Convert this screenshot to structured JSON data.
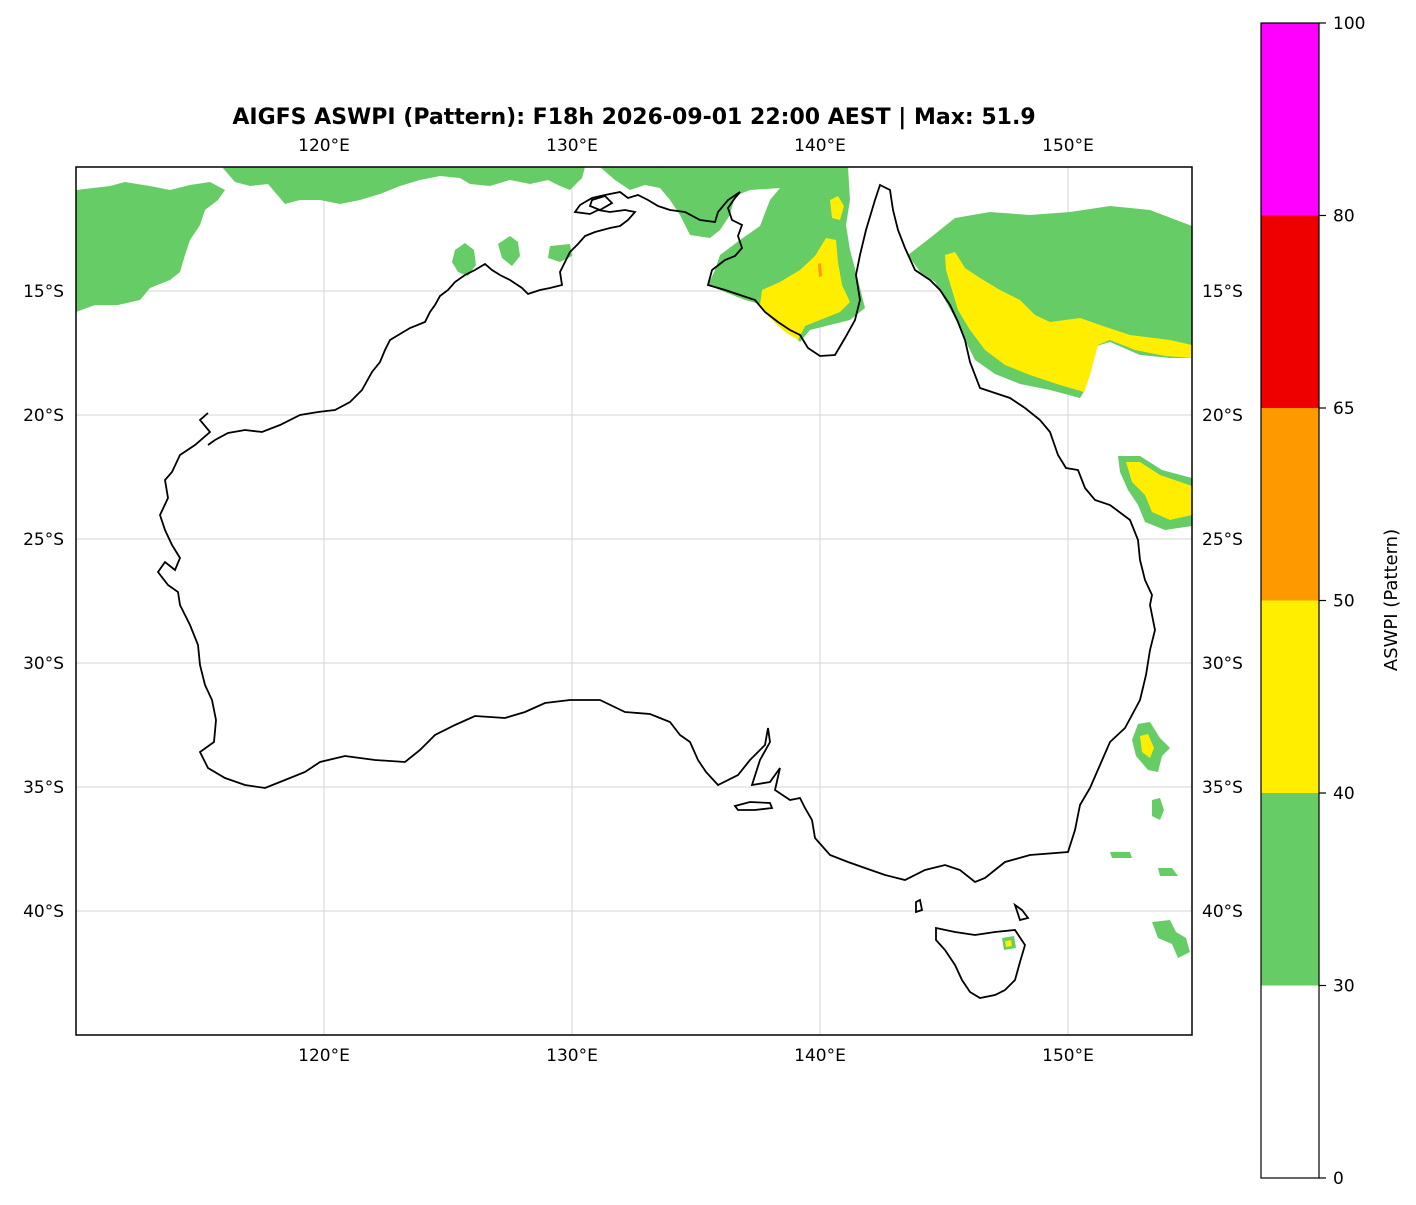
{
  "title": "AIGFS ASWPI (Pattern): F18h 2026-09-01 22:00 AEST | Max: 51.9",
  "map": {
    "lon_range": [
      110,
      155
    ],
    "lat_range": [
      -45,
      -10
    ],
    "lon_ticks": [
      {
        "value": 120,
        "label": "120°E"
      },
      {
        "value": 130,
        "label": "130°E"
      },
      {
        "value": 140,
        "label": "140°E"
      },
      {
        "value": 150,
        "label": "150°E"
      }
    ],
    "lat_ticks": [
      {
        "value": -15,
        "label": "15°S"
      },
      {
        "value": -20,
        "label": "20°S"
      },
      {
        "value": -25,
        "label": "25°S"
      },
      {
        "value": -30,
        "label": "30°S"
      },
      {
        "value": -35,
        "label": "35°S"
      },
      {
        "value": -40,
        "label": "40°S"
      }
    ],
    "gridlines": true,
    "coastline_color": "#000000"
  },
  "colorbar": {
    "label": "ASWPI (Pattern)",
    "ticks": [
      "0",
      "30",
      "40",
      "50",
      "65",
      "80",
      "100"
    ],
    "bins": [
      {
        "from": 0,
        "to": 30,
        "color": "#ffffff"
      },
      {
        "from": 30,
        "to": 40,
        "color": "#66cc66"
      },
      {
        "from": 40,
        "to": 50,
        "color": "#ffee00"
      },
      {
        "from": 50,
        "to": 65,
        "color": "#ff9900"
      },
      {
        "from": 65,
        "to": 80,
        "color": "#ee0000"
      },
      {
        "from": 80,
        "to": 100,
        "color": "#ff00ff"
      }
    ]
  },
  "regions": [
    {
      "name": "indian-ocean-northwest",
      "level": 30
    },
    {
      "name": "timor-sea",
      "level": 30
    },
    {
      "name": "gulf-of-carpentaria",
      "level": 30
    },
    {
      "name": "gulf-of-carpentaria-core",
      "level": 40
    },
    {
      "name": "gulf-of-carpentaria-peak",
      "level": 50
    },
    {
      "name": "coral-sea-north",
      "level": 30
    },
    {
      "name": "coral-sea-north-core",
      "level": 40
    },
    {
      "name": "coral-sea-central",
      "level": 30
    },
    {
      "name": "coral-sea-central-core",
      "level": 40
    },
    {
      "name": "tasman-sea-east",
      "level": 30
    },
    {
      "name": "tasman-sea-east-core",
      "level": 40
    },
    {
      "name": "tasman-sea-small-cells",
      "level": 30
    },
    {
      "name": "tasmania-cell",
      "level": 30
    },
    {
      "name": "tasmania-cell-core",
      "level": 40
    }
  ]
}
